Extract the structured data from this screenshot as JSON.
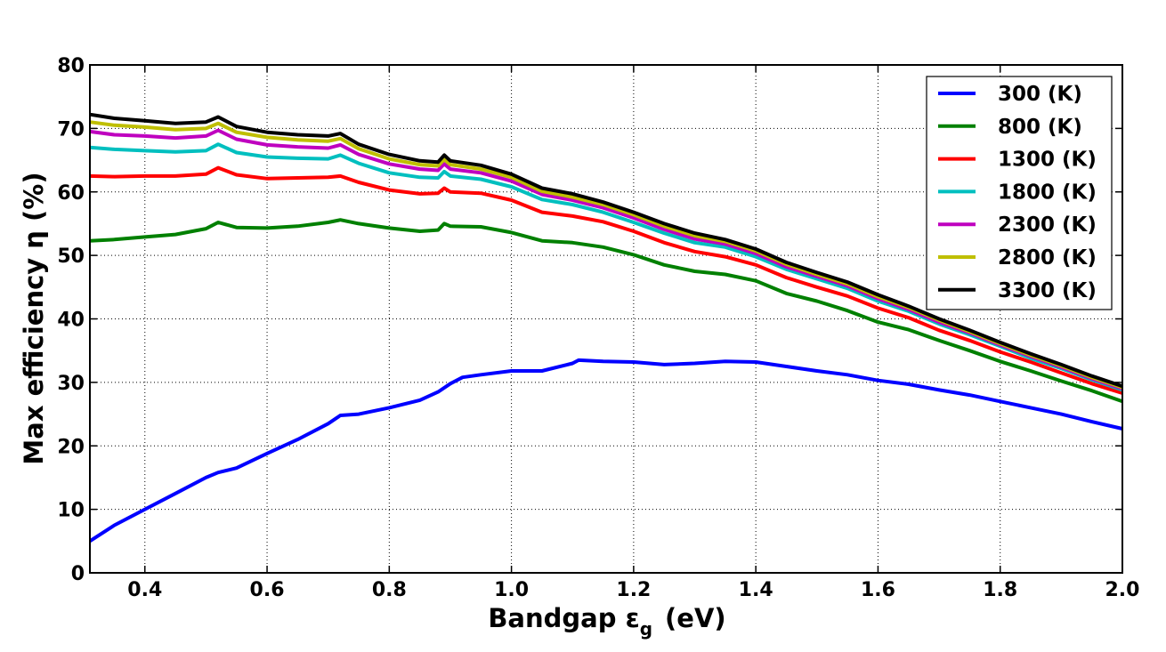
{
  "chart_data": {
    "type": "line",
    "title": "",
    "xlabel_main": "Bandgap ε",
    "xlabel_sub": "g",
    "xlabel_unit": "(eV)",
    "ylabel": "Max efficiency η (%)",
    "xlim": [
      0.31,
      2.0
    ],
    "ylim": [
      0,
      80
    ],
    "xticks": [
      "0.4",
      "0.6",
      "0.8",
      "1.0",
      "1.2",
      "1.4",
      "1.6",
      "1.8",
      "2.0"
    ],
    "yticks": [
      "0",
      "10",
      "20",
      "30",
      "40",
      "50",
      "60",
      "70",
      "80"
    ],
    "grid": true,
    "legend_position": "top-right",
    "series": [
      {
        "name": "300 (K)",
        "color": "#0000ff",
        "points": [
          [
            0.31,
            5.0
          ],
          [
            0.35,
            7.5
          ],
          [
            0.4,
            10.0
          ],
          [
            0.45,
            12.5
          ],
          [
            0.5,
            15.0
          ],
          [
            0.52,
            15.8
          ],
          [
            0.55,
            16.5
          ],
          [
            0.6,
            18.8
          ],
          [
            0.65,
            21.0
          ],
          [
            0.7,
            23.5
          ],
          [
            0.72,
            24.8
          ],
          [
            0.75,
            25.0
          ],
          [
            0.8,
            26.0
          ],
          [
            0.85,
            27.2
          ],
          [
            0.88,
            28.5
          ],
          [
            0.9,
            29.8
          ],
          [
            0.92,
            30.8
          ],
          [
            0.95,
            31.2
          ],
          [
            1.0,
            31.8
          ],
          [
            1.05,
            31.8
          ],
          [
            1.1,
            33.0
          ],
          [
            1.11,
            33.5
          ],
          [
            1.15,
            33.3
          ],
          [
            1.2,
            33.2
          ],
          [
            1.25,
            32.8
          ],
          [
            1.3,
            33.0
          ],
          [
            1.35,
            33.3
          ],
          [
            1.4,
            33.2
          ],
          [
            1.45,
            32.5
          ],
          [
            1.5,
            31.8
          ],
          [
            1.55,
            31.2
          ],
          [
            1.6,
            30.3
          ],
          [
            1.65,
            29.7
          ],
          [
            1.7,
            28.8
          ],
          [
            1.75,
            28.0
          ],
          [
            1.8,
            27.0
          ],
          [
            1.85,
            26.0
          ],
          [
            1.9,
            25.0
          ],
          [
            1.95,
            23.8
          ],
          [
            2.0,
            22.7
          ]
        ]
      },
      {
        "name": "800 (K)",
        "color": "#008000",
        "points": [
          [
            0.31,
            52.3
          ],
          [
            0.35,
            52.5
          ],
          [
            0.4,
            52.9
          ],
          [
            0.45,
            53.3
          ],
          [
            0.5,
            54.2
          ],
          [
            0.52,
            55.2
          ],
          [
            0.55,
            54.4
          ],
          [
            0.6,
            54.3
          ],
          [
            0.65,
            54.6
          ],
          [
            0.7,
            55.2
          ],
          [
            0.72,
            55.6
          ],
          [
            0.75,
            55.0
          ],
          [
            0.8,
            54.3
          ],
          [
            0.85,
            53.8
          ],
          [
            0.88,
            54.0
          ],
          [
            0.89,
            55.0
          ],
          [
            0.9,
            54.6
          ],
          [
            0.95,
            54.5
          ],
          [
            1.0,
            53.6
          ],
          [
            1.05,
            52.3
          ],
          [
            1.1,
            52.0
          ],
          [
            1.15,
            51.3
          ],
          [
            1.2,
            50.1
          ],
          [
            1.25,
            48.5
          ],
          [
            1.3,
            47.5
          ],
          [
            1.35,
            47.0
          ],
          [
            1.4,
            46.0
          ],
          [
            1.45,
            44.0
          ],
          [
            1.5,
            42.8
          ],
          [
            1.55,
            41.3
          ],
          [
            1.6,
            39.5
          ],
          [
            1.65,
            38.3
          ],
          [
            1.7,
            36.6
          ],
          [
            1.75,
            35.0
          ],
          [
            1.8,
            33.3
          ],
          [
            1.85,
            31.8
          ],
          [
            1.9,
            30.2
          ],
          [
            1.95,
            28.7
          ],
          [
            2.0,
            27.0
          ]
        ]
      },
      {
        "name": "1300 (K)",
        "color": "#ff0000",
        "points": [
          [
            0.31,
            62.5
          ],
          [
            0.35,
            62.4
          ],
          [
            0.4,
            62.5
          ],
          [
            0.45,
            62.5
          ],
          [
            0.5,
            62.8
          ],
          [
            0.52,
            63.8
          ],
          [
            0.55,
            62.7
          ],
          [
            0.6,
            62.1
          ],
          [
            0.65,
            62.2
          ],
          [
            0.7,
            62.3
          ],
          [
            0.72,
            62.5
          ],
          [
            0.75,
            61.5
          ],
          [
            0.8,
            60.3
          ],
          [
            0.85,
            59.7
          ],
          [
            0.88,
            59.8
          ],
          [
            0.89,
            60.6
          ],
          [
            0.9,
            60.0
          ],
          [
            0.95,
            59.8
          ],
          [
            1.0,
            58.7
          ],
          [
            1.05,
            56.8
          ],
          [
            1.1,
            56.2
          ],
          [
            1.15,
            55.3
          ],
          [
            1.2,
            53.8
          ],
          [
            1.25,
            52.0
          ],
          [
            1.3,
            50.6
          ],
          [
            1.35,
            49.8
          ],
          [
            1.4,
            48.5
          ],
          [
            1.45,
            46.5
          ],
          [
            1.5,
            45.0
          ],
          [
            1.55,
            43.6
          ],
          [
            1.6,
            41.7
          ],
          [
            1.65,
            40.2
          ],
          [
            1.7,
            38.2
          ],
          [
            1.75,
            36.6
          ],
          [
            1.8,
            34.8
          ],
          [
            1.85,
            33.2
          ],
          [
            1.9,
            31.5
          ],
          [
            1.95,
            29.8
          ],
          [
            2.0,
            28.3
          ]
        ]
      },
      {
        "name": "1800 (K)",
        "color": "#00bfbf",
        "points": [
          [
            0.31,
            67.0
          ],
          [
            0.35,
            66.7
          ],
          [
            0.4,
            66.5
          ],
          [
            0.45,
            66.3
          ],
          [
            0.5,
            66.5
          ],
          [
            0.52,
            67.5
          ],
          [
            0.55,
            66.2
          ],
          [
            0.6,
            65.5
          ],
          [
            0.65,
            65.3
          ],
          [
            0.7,
            65.2
          ],
          [
            0.72,
            65.8
          ],
          [
            0.75,
            64.5
          ],
          [
            0.8,
            63.0
          ],
          [
            0.85,
            62.3
          ],
          [
            0.88,
            62.2
          ],
          [
            0.89,
            63.2
          ],
          [
            0.9,
            62.5
          ],
          [
            0.95,
            62.0
          ],
          [
            1.0,
            60.8
          ],
          [
            1.05,
            58.8
          ],
          [
            1.1,
            58.0
          ],
          [
            1.15,
            56.8
          ],
          [
            1.2,
            55.2
          ],
          [
            1.25,
            53.5
          ],
          [
            1.3,
            52.0
          ],
          [
            1.35,
            51.3
          ],
          [
            1.4,
            49.8
          ],
          [
            1.45,
            47.8
          ],
          [
            1.5,
            46.3
          ],
          [
            1.55,
            44.8
          ],
          [
            1.6,
            42.8
          ],
          [
            1.65,
            41.2
          ],
          [
            1.7,
            39.2
          ],
          [
            1.75,
            37.5
          ],
          [
            1.8,
            35.7
          ],
          [
            1.85,
            33.8
          ],
          [
            1.9,
            32.2
          ],
          [
            1.95,
            30.4
          ],
          [
            2.0,
            28.8
          ]
        ]
      },
      {
        "name": "2300 (K)",
        "color": "#bf00bf",
        "points": [
          [
            0.31,
            69.5
          ],
          [
            0.35,
            69.0
          ],
          [
            0.4,
            68.8
          ],
          [
            0.45,
            68.5
          ],
          [
            0.5,
            68.8
          ],
          [
            0.52,
            69.7
          ],
          [
            0.55,
            68.3
          ],
          [
            0.6,
            67.4
          ],
          [
            0.65,
            67.1
          ],
          [
            0.7,
            66.9
          ],
          [
            0.72,
            67.4
          ],
          [
            0.75,
            65.9
          ],
          [
            0.8,
            64.4
          ],
          [
            0.85,
            63.6
          ],
          [
            0.88,
            63.4
          ],
          [
            0.89,
            64.4
          ],
          [
            0.9,
            63.6
          ],
          [
            0.95,
            63.0
          ],
          [
            1.0,
            61.7
          ],
          [
            1.05,
            59.6
          ],
          [
            1.1,
            58.7
          ],
          [
            1.15,
            57.5
          ],
          [
            1.2,
            55.9
          ],
          [
            1.25,
            54.1
          ],
          [
            1.3,
            52.6
          ],
          [
            1.35,
            51.8
          ],
          [
            1.4,
            50.3
          ],
          [
            1.45,
            48.2
          ],
          [
            1.5,
            46.7
          ],
          [
            1.55,
            45.2
          ],
          [
            1.6,
            43.2
          ],
          [
            1.65,
            41.5
          ],
          [
            1.7,
            39.5
          ],
          [
            1.75,
            37.8
          ],
          [
            1.8,
            35.9
          ],
          [
            1.85,
            34.1
          ],
          [
            1.9,
            32.4
          ],
          [
            1.95,
            30.6
          ],
          [
            2.0,
            29.0
          ]
        ]
      },
      {
        "name": "2800 (K)",
        "color": "#bfbf00",
        "points": [
          [
            0.31,
            71.0
          ],
          [
            0.35,
            70.5
          ],
          [
            0.4,
            70.2
          ],
          [
            0.45,
            69.8
          ],
          [
            0.5,
            70.0
          ],
          [
            0.52,
            70.8
          ],
          [
            0.55,
            69.4
          ],
          [
            0.6,
            68.6
          ],
          [
            0.65,
            68.2
          ],
          [
            0.7,
            68.0
          ],
          [
            0.72,
            68.4
          ],
          [
            0.75,
            66.8
          ],
          [
            0.8,
            65.2
          ],
          [
            0.85,
            64.3
          ],
          [
            0.88,
            64.1
          ],
          [
            0.89,
            65.1
          ],
          [
            0.9,
            64.3
          ],
          [
            0.95,
            63.6
          ],
          [
            1.0,
            62.3
          ],
          [
            1.05,
            60.1
          ],
          [
            1.1,
            59.2
          ],
          [
            1.15,
            58.0
          ],
          [
            1.2,
            56.4
          ],
          [
            1.25,
            54.6
          ],
          [
            1.3,
            53.1
          ],
          [
            1.35,
            52.2
          ],
          [
            1.4,
            50.7
          ],
          [
            1.45,
            48.6
          ],
          [
            1.5,
            47.0
          ],
          [
            1.55,
            45.5
          ],
          [
            1.6,
            43.5
          ],
          [
            1.65,
            41.8
          ],
          [
            1.7,
            39.8
          ],
          [
            1.75,
            38.0
          ],
          [
            1.8,
            36.1
          ],
          [
            1.85,
            34.3
          ],
          [
            1.9,
            32.6
          ],
          [
            1.95,
            30.8
          ],
          [
            2.0,
            29.2
          ]
        ]
      },
      {
        "name": "3300 (K)",
        "color": "#000000",
        "points": [
          [
            0.31,
            72.2
          ],
          [
            0.35,
            71.6
          ],
          [
            0.4,
            71.2
          ],
          [
            0.45,
            70.8
          ],
          [
            0.5,
            71.0
          ],
          [
            0.52,
            71.8
          ],
          [
            0.55,
            70.3
          ],
          [
            0.6,
            69.4
          ],
          [
            0.65,
            69.0
          ],
          [
            0.7,
            68.8
          ],
          [
            0.72,
            69.2
          ],
          [
            0.75,
            67.5
          ],
          [
            0.8,
            65.9
          ],
          [
            0.85,
            64.9
          ],
          [
            0.88,
            64.7
          ],
          [
            0.89,
            65.8
          ],
          [
            0.9,
            64.9
          ],
          [
            0.95,
            64.2
          ],
          [
            1.0,
            62.8
          ],
          [
            1.05,
            60.6
          ],
          [
            1.1,
            59.7
          ],
          [
            1.15,
            58.4
          ],
          [
            1.2,
            56.8
          ],
          [
            1.25,
            55.0
          ],
          [
            1.3,
            53.5
          ],
          [
            1.35,
            52.5
          ],
          [
            1.4,
            51.0
          ],
          [
            1.45,
            48.9
          ],
          [
            1.5,
            47.3
          ],
          [
            1.55,
            45.8
          ],
          [
            1.6,
            43.8
          ],
          [
            1.65,
            42.0
          ],
          [
            1.7,
            40.0
          ],
          [
            1.75,
            38.2
          ],
          [
            1.8,
            36.3
          ],
          [
            1.85,
            34.5
          ],
          [
            1.9,
            32.8
          ],
          [
            1.95,
            31.0
          ],
          [
            2.0,
            29.4
          ]
        ]
      }
    ]
  }
}
